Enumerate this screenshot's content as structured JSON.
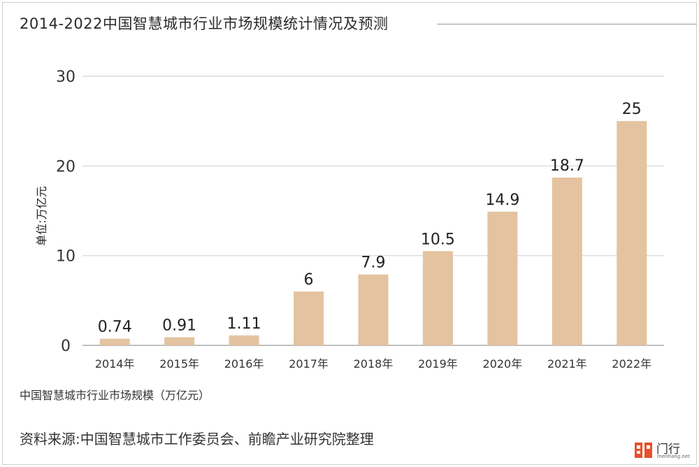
{
  "title": "2014-2022中国智慧城市行业市场规模统计情况及预测",
  "y_unit_label": "单位:万亿元",
  "caption": "中国智慧城市行业市场规模（万亿元）",
  "source": "资料来源:中国智慧城市工作委员会、前瞻产业研究院整理",
  "logo": {
    "text": "门行",
    "sub": "menhang.net",
    "icon": "menhang-logo-icon"
  },
  "colors": {
    "bar": "#e4c3a0",
    "grid": "#d4d4d4",
    "axis": "#9a9a9a"
  },
  "chart_data": {
    "type": "bar",
    "categories": [
      "2014年",
      "2015年",
      "2016年",
      "2017年",
      "2018年",
      "2019年",
      "2020年",
      "2021年",
      "2022年"
    ],
    "values": [
      0.74,
      0.91,
      1.11,
      6,
      7.9,
      10.5,
      14.9,
      18.7,
      25
    ],
    "value_labels": [
      "0.74",
      "0.91",
      "1.11",
      "6",
      "7.9",
      "10.5",
      "14.9",
      "18.7",
      "25"
    ],
    "yticks": [
      "0",
      "10",
      "20",
      "30"
    ],
    "ylim": [
      0,
      30
    ],
    "grid": true,
    "legend": "none"
  }
}
